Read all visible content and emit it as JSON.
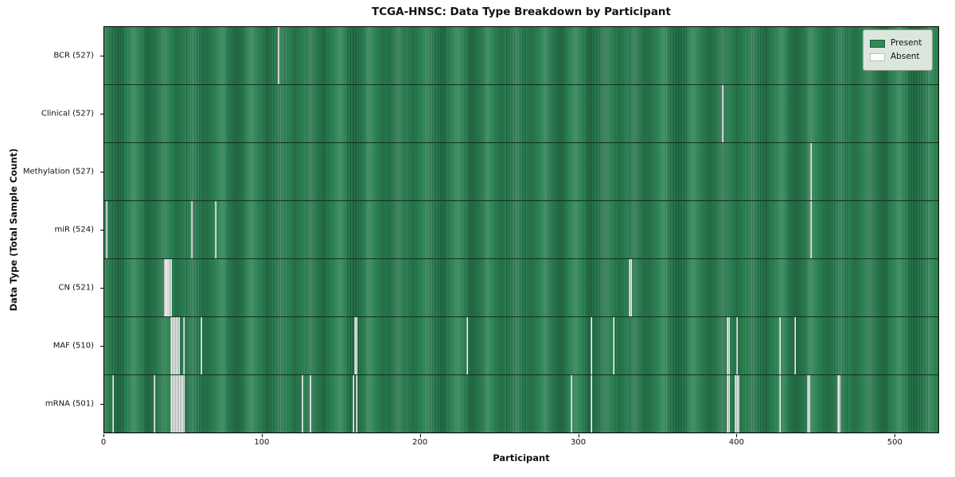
{
  "title": "TCGA-HNSC: Data Type Breakdown by Participant",
  "xlabel": "Participant",
  "ylabel": "Data Type (Total Sample Count)",
  "legend": {
    "present_label": "Present",
    "absent_label": "Absent"
  },
  "colors": {
    "present": "#2e8b57",
    "present_edge": "#215f40",
    "absent": "#f3f3f3",
    "legend_bg": "#dde6dd"
  },
  "chart_data": {
    "type": "heatmap",
    "title": "TCGA-HNSC: Data Type Breakdown by Participant",
    "xlabel": "Participant",
    "ylabel": "Data Type (Total Sample Count)",
    "legend_entries": [
      "Present",
      "Absent"
    ],
    "legend_position": "upper right",
    "n_participants": 528,
    "x_range": [
      0,
      528
    ],
    "x_ticks": [
      0,
      100,
      200,
      300,
      400,
      500
    ],
    "rows": [
      {
        "label": "BCR (527)",
        "data_type": "BCR",
        "total_samples": 527,
        "absent_participants": [
          110
        ]
      },
      {
        "label": "Clinical (527)",
        "data_type": "Clinical",
        "total_samples": 527,
        "absent_participants": [
          391
        ]
      },
      {
        "label": "Methylation (527)",
        "data_type": "Methylation",
        "total_samples": 527,
        "absent_participants": [
          447
        ]
      },
      {
        "label": "miR (524)",
        "data_type": "miR",
        "total_samples": 524,
        "absent_participants": [
          1,
          55,
          70,
          447
        ]
      },
      {
        "label": "CN (521)",
        "data_type": "CN",
        "total_samples": 521,
        "absent_participants": [
          38,
          39,
          40,
          41,
          42,
          332,
          333
        ]
      },
      {
        "label": "MAF (510)",
        "data_type": "MAF",
        "total_samples": 510,
        "absent_participants": [
          42,
          43,
          44,
          45,
          46,
          47,
          50,
          61,
          158,
          159,
          229,
          308,
          322,
          394,
          395,
          400,
          427,
          437
        ]
      },
      {
        "label": "mRNA (501)",
        "data_type": "mRNA",
        "total_samples": 501,
        "absent_participants": [
          5,
          31,
          42,
          43,
          44,
          45,
          46,
          47,
          48,
          49,
          50,
          125,
          130,
          157,
          159,
          295,
          308,
          394,
          395,
          399,
          400,
          401,
          427,
          445,
          446,
          464,
          465
        ]
      }
    ]
  }
}
